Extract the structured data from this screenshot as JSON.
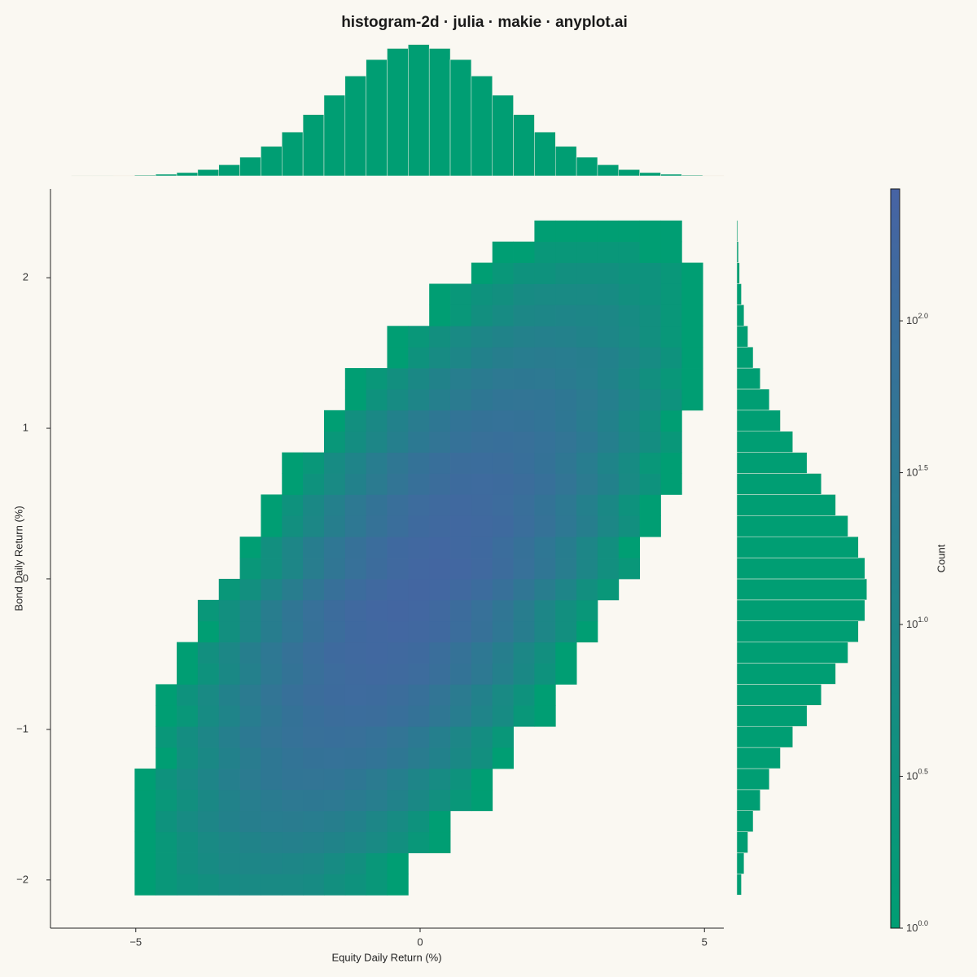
{
  "chart_data": {
    "type": "histogram2d",
    "title": "histogram-2d · julia · makie · anyplot.ai",
    "x_label": "Equity Daily Return (%)",
    "y_label": "Bond Daily Return (%)",
    "colorbar_label": "Count",
    "xlim": [
      -6.5,
      5.34
    ],
    "ylim": [
      -2.32,
      2.59
    ],
    "xticks": [
      {
        "value": -5,
        "label": "−5"
      },
      0,
      5
    ],
    "yticks": [
      {
        "value": -2,
        "label": "−2"
      },
      {
        "value": -1,
        "label": "−1"
      },
      0,
      1,
      2
    ],
    "x_edges": [
      -6.5,
      -6.13,
      -5.76,
      -5.39,
      -5.02,
      -4.65,
      -4.28,
      -3.91,
      -3.54,
      -3.17,
      -2.8,
      -2.43,
      -2.06,
      -1.69,
      -1.32,
      -0.95,
      -0.58,
      -0.21,
      0.16,
      0.53,
      0.9,
      1.27,
      1.64,
      2.01,
      2.38,
      2.75,
      3.12,
      3.49,
      3.86,
      4.23,
      4.6,
      4.97,
      5.34
    ],
    "y_edges": [
      -2.1,
      -1.96,
      -1.82,
      -1.68,
      -1.54,
      -1.4,
      -1.26,
      -1.12,
      -0.98,
      -0.84,
      -0.7,
      -0.56,
      -0.42,
      -0.28,
      -0.14,
      0,
      0.14,
      0.28,
      0.42,
      0.56,
      0.7,
      0.84,
      0.98,
      1.12,
      1.26,
      1.4,
      1.54,
      1.68,
      1.82,
      1.96,
      2.1,
      2.24,
      2.38
    ],
    "counts": [
      [
        0,
        0,
        0,
        0,
        1,
        2,
        3,
        4,
        6,
        7,
        7,
        7,
        6,
        4,
        3,
        2,
        1,
        0,
        0,
        0,
        0,
        0,
        0,
        0,
        0,
        0,
        0,
        0,
        0,
        0,
        0,
        0
      ],
      [
        0,
        0,
        0,
        0,
        1,
        2,
        4,
        6,
        9,
        10,
        11,
        10,
        9,
        6,
        4,
        2,
        1,
        0,
        0,
        0,
        0,
        0,
        0,
        0,
        0,
        0,
        0,
        0,
        0,
        0,
        0,
        0
      ],
      [
        0,
        0,
        0,
        0,
        1,
        2,
        4,
        7,
        10,
        13,
        16,
        17,
        16,
        13,
        10,
        7,
        4,
        2,
        1,
        0,
        0,
        0,
        0,
        0,
        0,
        0,
        0,
        0,
        0,
        0,
        0,
        0
      ],
      [
        0,
        0,
        0,
        0,
        1,
        3,
        6,
        10,
        15,
        20,
        24,
        25,
        24,
        20,
        15,
        10,
        6,
        3,
        1,
        0,
        0,
        0,
        0,
        0,
        0,
        0,
        0,
        0,
        0,
        0,
        0,
        0
      ],
      [
        0,
        0,
        0,
        0,
        1,
        2,
        4,
        8,
        14,
        21,
        28,
        34,
        36,
        34,
        28,
        21,
        14,
        8,
        4,
        2,
        1,
        0,
        0,
        0,
        0,
        0,
        0,
        0,
        0,
        0,
        0,
        0
      ],
      [
        0,
        0,
        0,
        0,
        1,
        3,
        6,
        11,
        19,
        29,
        39,
        47,
        50,
        47,
        39,
        29,
        19,
        11,
        6,
        3,
        1,
        0,
        0,
        0,
        0,
        0,
        0,
        0,
        0,
        0,
        0,
        0
      ],
      [
        0,
        0,
        0,
        0,
        0,
        1,
        4,
        8,
        15,
        26,
        39,
        53,
        63,
        67,
        63,
        53,
        39,
        26,
        15,
        8,
        4,
        1,
        0,
        0,
        0,
        0,
        0,
        0,
        0,
        0,
        0,
        0
      ],
      [
        0,
        0,
        0,
        0,
        0,
        2,
        5,
        10,
        19,
        33,
        50,
        68,
        81,
        86,
        81,
        68,
        50,
        33,
        19,
        10,
        5,
        2,
        0,
        0,
        0,
        0,
        0,
        0,
        0,
        0,
        0,
        0
      ],
      [
        0,
        0,
        0,
        0,
        0,
        1,
        2,
        6,
        12,
        24,
        41,
        63,
        85,
        102,
        108,
        102,
        85,
        63,
        41,
        24,
        12,
        6,
        2,
        1,
        0,
        0,
        0,
        0,
        0,
        0,
        0,
        0
      ],
      [
        0,
        0,
        0,
        0,
        0,
        1,
        3,
        7,
        15,
        29,
        50,
        76,
        102,
        122,
        130,
        122,
        102,
        76,
        50,
        29,
        15,
        7,
        3,
        1,
        0,
        0,
        0,
        0,
        0,
        0,
        0,
        0
      ],
      [
        0,
        0,
        0,
        0,
        0,
        0,
        1,
        3,
        8,
        17,
        34,
        58,
        89,
        120,
        143,
        152,
        143,
        120,
        89,
        58,
        34,
        17,
        8,
        3,
        1,
        0,
        0,
        0,
        0,
        0,
        0,
        0
      ],
      [
        0,
        0,
        0,
        0,
        0,
        0,
        1,
        4,
        9,
        20,
        38,
        65,
        100,
        135,
        161,
        171,
        161,
        135,
        100,
        65,
        38,
        20,
        9,
        4,
        1,
        0,
        0,
        0,
        0,
        0,
        0,
        0
      ],
      [
        0,
        0,
        0,
        0,
        0,
        0,
        0,
        1,
        4,
        10,
        22,
        42,
        72,
        109,
        147,
        176,
        187,
        176,
        147,
        109,
        72,
        42,
        22,
        10,
        4,
        1,
        0,
        0,
        0,
        0,
        0,
        0
      ],
      [
        0,
        0,
        0,
        0,
        0,
        0,
        0,
        2,
        4,
        10,
        23,
        44,
        75,
        115,
        155,
        186,
        197,
        186,
        155,
        115,
        75,
        44,
        23,
        10,
        4,
        2,
        0,
        0,
        0,
        0,
        0,
        0
      ],
      [
        0,
        0,
        0,
        0,
        0,
        0,
        0,
        0,
        2,
        4,
        11,
        23,
        45,
        77,
        117,
        157,
        188,
        200,
        188,
        157,
        117,
        77,
        45,
        23,
        11,
        4,
        2,
        0,
        0,
        0,
        0,
        0
      ],
      [
        0,
        0,
        0,
        0,
        0,
        0,
        0,
        0,
        0,
        2,
        4,
        10,
        23,
        44,
        75,
        115,
        155,
        186,
        197,
        186,
        155,
        115,
        75,
        44,
        23,
        10,
        4,
        2,
        0,
        0,
        0,
        0
      ],
      [
        0,
        0,
        0,
        0,
        0,
        0,
        0,
        0,
        0,
        1,
        4,
        10,
        22,
        42,
        72,
        109,
        147,
        176,
        187,
        176,
        147,
        109,
        72,
        42,
        22,
        10,
        4,
        1,
        0,
        0,
        0,
        0
      ],
      [
        0,
        0,
        0,
        0,
        0,
        0,
        0,
        0,
        0,
        0,
        1,
        4,
        9,
        20,
        38,
        65,
        100,
        135,
        161,
        171,
        161,
        135,
        100,
        65,
        38,
        20,
        9,
        4,
        1,
        0,
        0,
        0
      ],
      [
        0,
        0,
        0,
        0,
        0,
        0,
        0,
        0,
        0,
        0,
        1,
        3,
        8,
        17,
        34,
        58,
        89,
        120,
        143,
        152,
        143,
        120,
        89,
        58,
        34,
        17,
        8,
        3,
        1,
        0,
        0,
        0
      ],
      [
        0,
        0,
        0,
        0,
        0,
        0,
        0,
        0,
        0,
        0,
        0,
        1,
        3,
        7,
        15,
        29,
        50,
        76,
        102,
        122,
        130,
        122,
        102,
        76,
        50,
        29,
        15,
        7,
        3,
        1,
        0,
        0
      ],
      [
        0,
        0,
        0,
        0,
        0,
        0,
        0,
        0,
        0,
        0,
        0,
        1,
        2,
        6,
        12,
        24,
        41,
        63,
        85,
        102,
        108,
        102,
        85,
        63,
        41,
        24,
        12,
        6,
        2,
        1,
        0,
        0
      ],
      [
        0,
        0,
        0,
        0,
        0,
        0,
        0,
        0,
        0,
        0,
        0,
        0,
        0,
        2,
        5,
        10,
        19,
        33,
        50,
        68,
        81,
        86,
        81,
        68,
        50,
        33,
        19,
        10,
        5,
        2,
        0,
        0
      ],
      [
        0,
        0,
        0,
        0,
        0,
        0,
        0,
        0,
        0,
        0,
        0,
        0,
        0,
        1,
        4,
        8,
        15,
        26,
        39,
        53,
        63,
        67,
        63,
        53,
        39,
        26,
        15,
        8,
        4,
        1,
        0,
        0
      ],
      [
        0,
        0,
        0,
        0,
        0,
        0,
        0,
        0,
        0,
        0,
        0,
        0,
        0,
        0,
        1,
        3,
        6,
        11,
        19,
        29,
        39,
        47,
        50,
        47,
        39,
        29,
        19,
        11,
        6,
        3,
        1,
        0
      ],
      [
        0,
        0,
        0,
        0,
        0,
        0,
        0,
        0,
        0,
        0,
        0,
        0,
        0,
        0,
        1,
        2,
        4,
        8,
        14,
        21,
        28,
        34,
        36,
        34,
        28,
        21,
        14,
        8,
        4,
        2,
        1,
        0
      ],
      [
        0,
        0,
        0,
        0,
        0,
        0,
        0,
        0,
        0,
        0,
        0,
        0,
        0,
        0,
        0,
        0,
        1,
        3,
        6,
        10,
        15,
        20,
        24,
        25,
        24,
        20,
        15,
        10,
        6,
        3,
        1,
        0
      ],
      [
        0,
        0,
        0,
        0,
        0,
        0,
        0,
        0,
        0,
        0,
        0,
        0,
        0,
        0,
        0,
        0,
        1,
        2,
        4,
        7,
        10,
        13,
        16,
        17,
        16,
        13,
        10,
        7,
        4,
        2,
        1,
        0
      ],
      [
        0,
        0,
        0,
        0,
        0,
        0,
        0,
        0,
        0,
        0,
        0,
        0,
        0,
        0,
        0,
        0,
        0,
        0,
        1,
        2,
        4,
        6,
        9,
        10,
        11,
        10,
        9,
        6,
        4,
        2,
        1,
        0
      ],
      [
        0,
        0,
        0,
        0,
        0,
        0,
        0,
        0,
        0,
        0,
        0,
        0,
        0,
        0,
        0,
        0,
        0,
        0,
        1,
        2,
        3,
        4,
        6,
        7,
        7,
        7,
        6,
        4,
        3,
        2,
        1,
        0
      ],
      [
        0,
        0,
        0,
        0,
        0,
        0,
        0,
        0,
        0,
        0,
        0,
        0,
        0,
        0,
        0,
        0,
        0,
        0,
        0,
        0,
        1,
        2,
        3,
        3,
        4,
        4,
        4,
        3,
        3,
        2,
        1,
        0
      ],
      [
        0,
        0,
        0,
        0,
        0,
        0,
        0,
        0,
        0,
        0,
        0,
        0,
        0,
        0,
        0,
        0,
        0,
        0,
        0,
        0,
        0,
        1,
        1,
        2,
        2,
        2,
        2,
        2,
        1,
        1,
        0,
        0
      ],
      [
        0,
        0,
        0,
        0,
        0,
        0,
        0,
        0,
        0,
        0,
        0,
        0,
        0,
        0,
        0,
        0,
        0,
        0,
        0,
        0,
        0,
        0,
        0,
        1,
        1,
        1,
        1,
        1,
        1,
        1,
        0,
        0
      ]
    ],
    "x_marginal": [
      0,
      1,
      2,
      5,
      11,
      24,
      48,
      92,
      163,
      275,
      434,
      645,
      902,
      1187,
      1470,
      1712,
      1876,
      1934,
      1876,
      1712,
      1470,
      1187,
      902,
      645,
      434,
      275,
      163,
      92,
      48,
      24,
      11,
      5
    ],
    "y_marginal": [
      51,
      81,
      124,
      183,
      263,
      365,
      489,
      628,
      788,
      949,
      1110,
      1248,
      1365,
      1438,
      1460,
      1438,
      1365,
      1248,
      1110,
      949,
      788,
      628,
      489,
      365,
      263,
      183,
      124,
      81,
      51,
      31,
      18,
      10
    ],
    "x_marginal_lim": [
      0,
      2050
    ],
    "y_marginal_lim": [
      0,
      1600
    ],
    "marginal_color": "#009e73",
    "color_scale": "log",
    "colorlim": [
      1,
      272
    ],
    "colormap": [
      "#009e73",
      "#4763a4"
    ],
    "colorbar_ticks": [
      {
        "value": 1,
        "label": "10",
        "exponent": "0.0"
      },
      {
        "value": 3.1623,
        "label": "10",
        "exponent": "0.5"
      },
      {
        "value": 10,
        "label": "10",
        "exponent": "1.0"
      },
      {
        "value": 31.623,
        "label": "10",
        "exponent": "1.5"
      },
      {
        "value": 100,
        "label": "10",
        "exponent": "2.0"
      }
    ]
  }
}
